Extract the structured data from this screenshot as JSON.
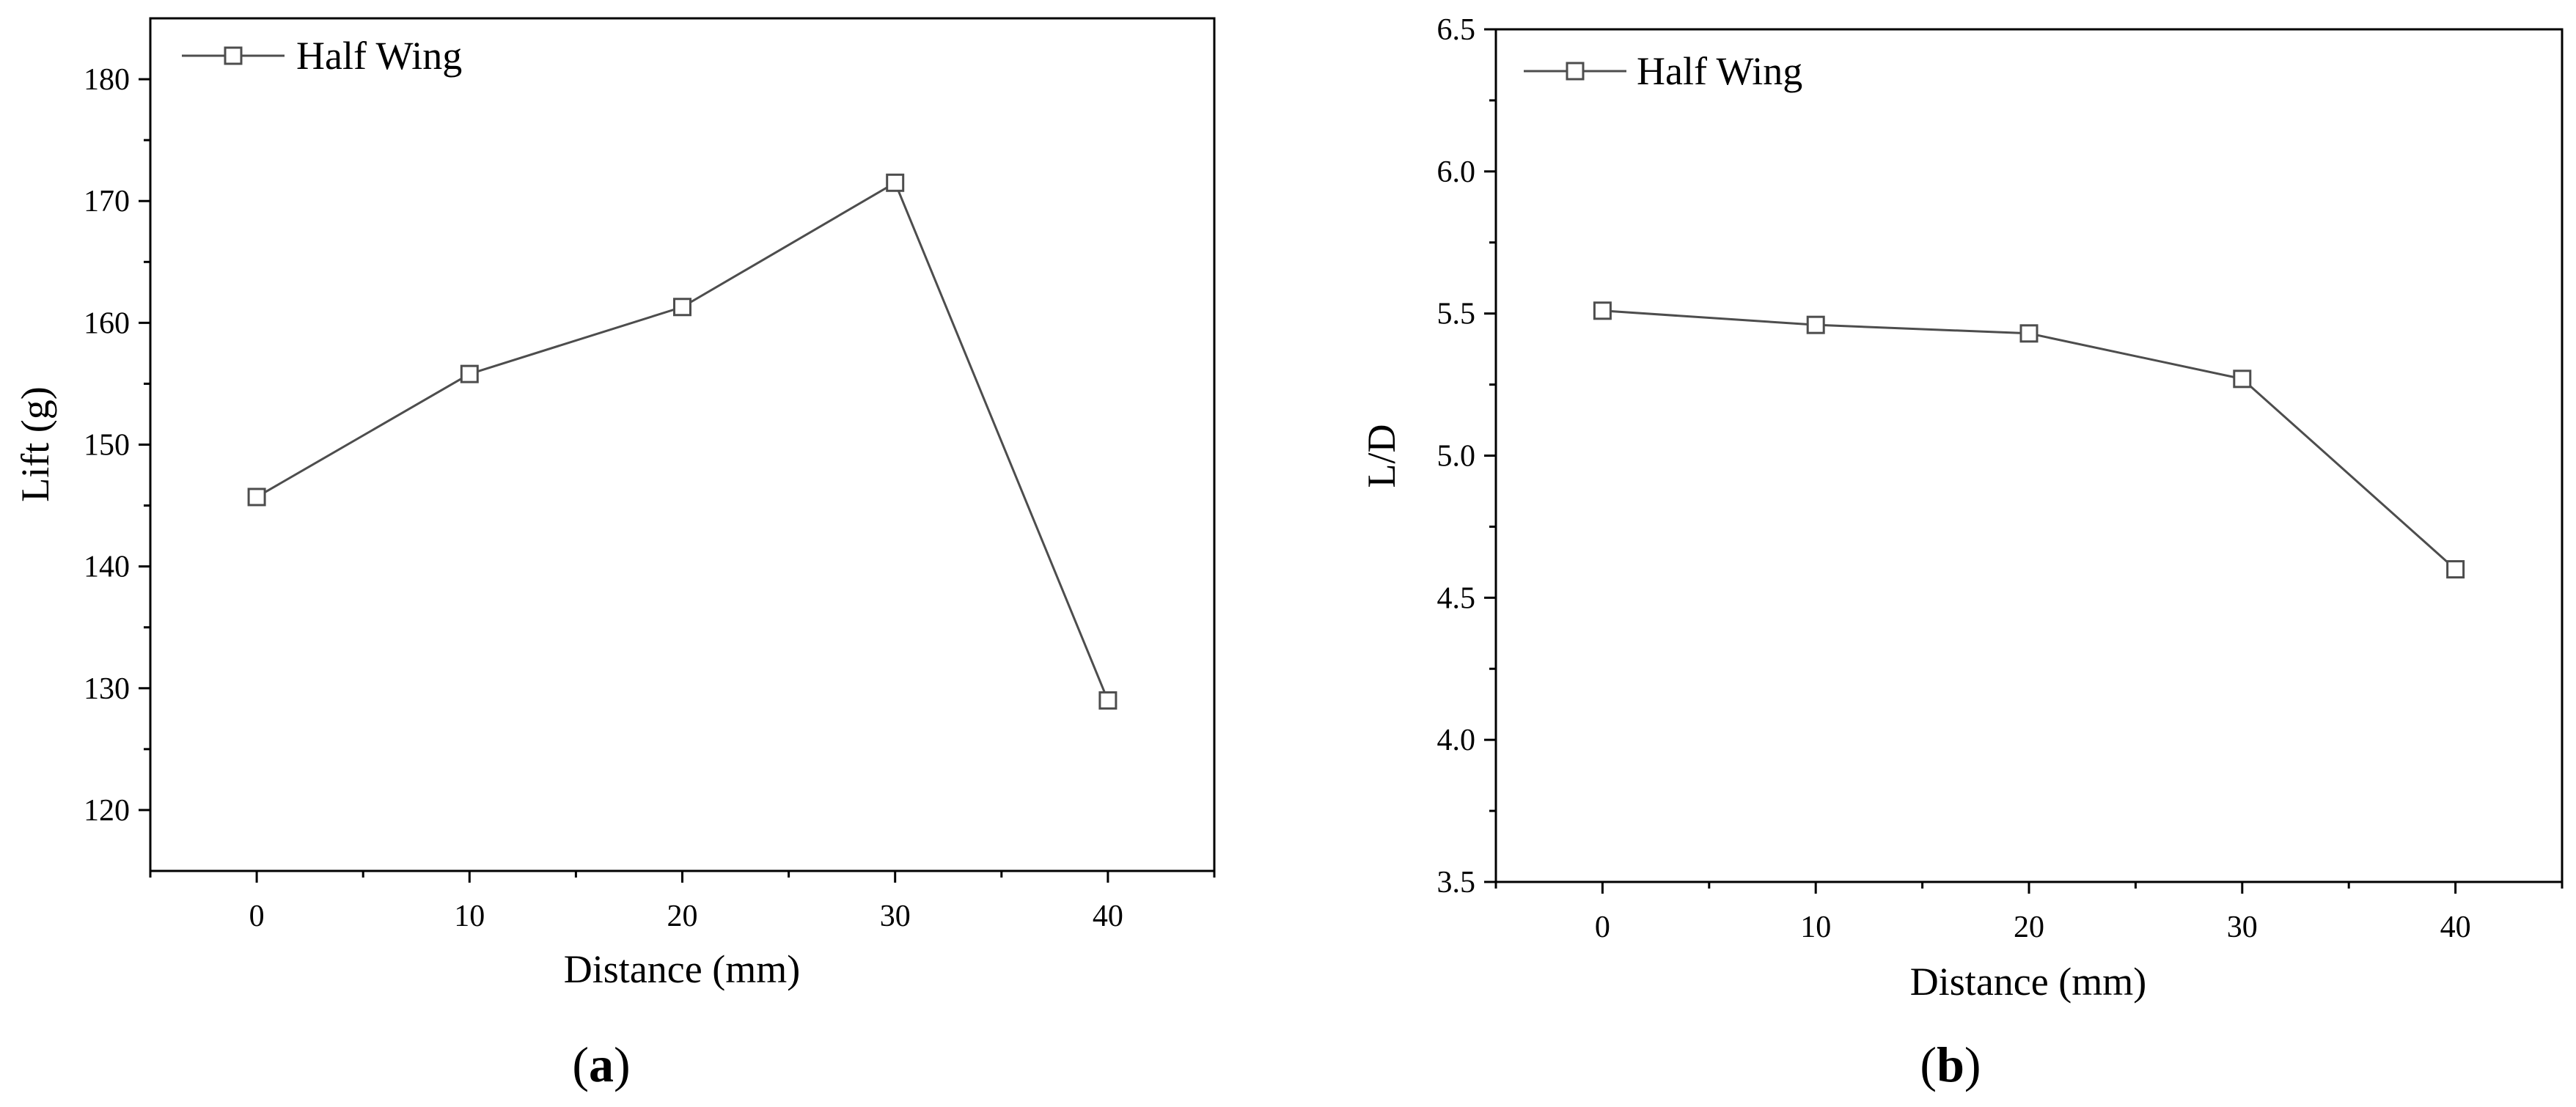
{
  "chart_data": [
    {
      "type": "line",
      "panel_label": "a",
      "xlabel": "Distance (mm)",
      "ylabel": "Lift (g)",
      "x": [
        0,
        10,
        20,
        30,
        40
      ],
      "xticks": [
        "0",
        "10",
        "20",
        "30",
        "40"
      ],
      "xlim": [
        -5,
        45
      ],
      "ylim": [
        115,
        185
      ],
      "yticks": [
        "120",
        "130",
        "140",
        "150",
        "160",
        "170",
        "180"
      ],
      "ytick_values": [
        120,
        130,
        140,
        150,
        160,
        170,
        180
      ],
      "series": [
        {
          "name": "Half Wing",
          "values": [
            145.7,
            155.8,
            161.3,
            171.5,
            129.0
          ],
          "color": "#4d4d4d",
          "marker": "open-square"
        }
      ],
      "legend_position": "top-left",
      "grid": false
    },
    {
      "type": "line",
      "panel_label": "b",
      "xlabel": "Distance (mm)",
      "ylabel": "L/D",
      "x": [
        0,
        10,
        20,
        30,
        40
      ],
      "xticks": [
        "0",
        "10",
        "20",
        "30",
        "40"
      ],
      "xlim": [
        -5,
        45
      ],
      "ylim": [
        3.5,
        6.5
      ],
      "yticks": [
        "3.5",
        "4.0",
        "4.5",
        "5.0",
        "5.5",
        "6.0",
        "6.5"
      ],
      "ytick_values": [
        3.5,
        4.0,
        4.5,
        5.0,
        5.5,
        6.0,
        6.5
      ],
      "series": [
        {
          "name": "Half Wing",
          "values": [
            5.51,
            5.46,
            5.43,
            5.27,
            4.6
          ],
          "color": "#4d4d4d",
          "marker": "open-square"
        }
      ],
      "legend_position": "top-left",
      "grid": false
    }
  ]
}
